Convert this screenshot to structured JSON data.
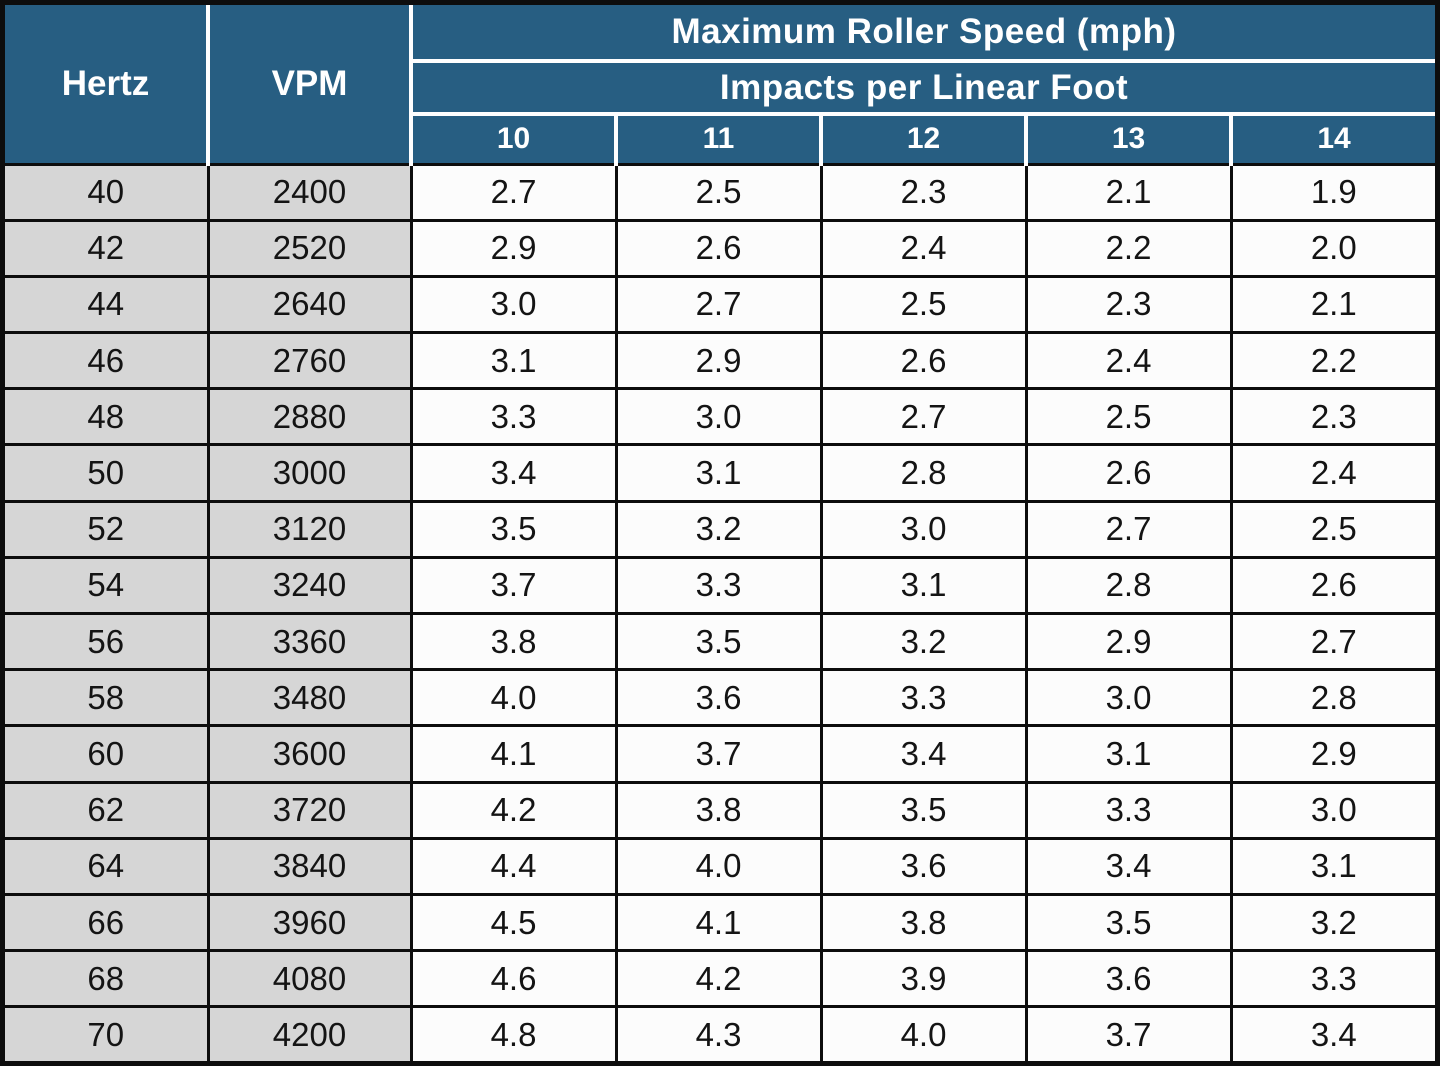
{
  "colors": {
    "header_blue": "#275E82",
    "header_text": "#ffffff",
    "row_header_gray": "#D6D6D6",
    "data_cell_white": "#FCFCFC",
    "grid_black": "#0d0d0d"
  },
  "chart_data": {
    "type": "table",
    "title": "Maximum Roller Speed (mph)",
    "subtitle": "Impacts per Linear Foot",
    "row_headers": [
      "Hertz",
      "VPM"
    ],
    "impact_columns": [
      "10",
      "11",
      "12",
      "13",
      "14"
    ],
    "rows": [
      {
        "hertz": "40",
        "vpm": "2400",
        "speeds": [
          "2.7",
          "2.5",
          "2.3",
          "2.1",
          "1.9"
        ]
      },
      {
        "hertz": "42",
        "vpm": "2520",
        "speeds": [
          "2.9",
          "2.6",
          "2.4",
          "2.2",
          "2.0"
        ]
      },
      {
        "hertz": "44",
        "vpm": "2640",
        "speeds": [
          "3.0",
          "2.7",
          "2.5",
          "2.3",
          "2.1"
        ]
      },
      {
        "hertz": "46",
        "vpm": "2760",
        "speeds": [
          "3.1",
          "2.9",
          "2.6",
          "2.4",
          "2.2"
        ]
      },
      {
        "hertz": "48",
        "vpm": "2880",
        "speeds": [
          "3.3",
          "3.0",
          "2.7",
          "2.5",
          "2.3"
        ]
      },
      {
        "hertz": "50",
        "vpm": "3000",
        "speeds": [
          "3.4",
          "3.1",
          "2.8",
          "2.6",
          "2.4"
        ]
      },
      {
        "hertz": "52",
        "vpm": "3120",
        "speeds": [
          "3.5",
          "3.2",
          "3.0",
          "2.7",
          "2.5"
        ]
      },
      {
        "hertz": "54",
        "vpm": "3240",
        "speeds": [
          "3.7",
          "3.3",
          "3.1",
          "2.8",
          "2.6"
        ]
      },
      {
        "hertz": "56",
        "vpm": "3360",
        "speeds": [
          "3.8",
          "3.5",
          "3.2",
          "2.9",
          "2.7"
        ]
      },
      {
        "hertz": "58",
        "vpm": "3480",
        "speeds": [
          "4.0",
          "3.6",
          "3.3",
          "3.0",
          "2.8"
        ]
      },
      {
        "hertz": "60",
        "vpm": "3600",
        "speeds": [
          "4.1",
          "3.7",
          "3.4",
          "3.1",
          "2.9"
        ]
      },
      {
        "hertz": "62",
        "vpm": "3720",
        "speeds": [
          "4.2",
          "3.8",
          "3.5",
          "3.3",
          "3.0"
        ]
      },
      {
        "hertz": "64",
        "vpm": "3840",
        "speeds": [
          "4.4",
          "4.0",
          "3.6",
          "3.4",
          "3.1"
        ]
      },
      {
        "hertz": "66",
        "vpm": "3960",
        "speeds": [
          "4.5",
          "4.1",
          "3.8",
          "3.5",
          "3.2"
        ]
      },
      {
        "hertz": "68",
        "vpm": "4080",
        "speeds": [
          "4.6",
          "4.2",
          "3.9",
          "3.6",
          "3.3"
        ]
      },
      {
        "hertz": "70",
        "vpm": "4200",
        "speeds": [
          "4.8",
          "4.3",
          "4.0",
          "3.7",
          "3.4"
        ]
      }
    ]
  }
}
